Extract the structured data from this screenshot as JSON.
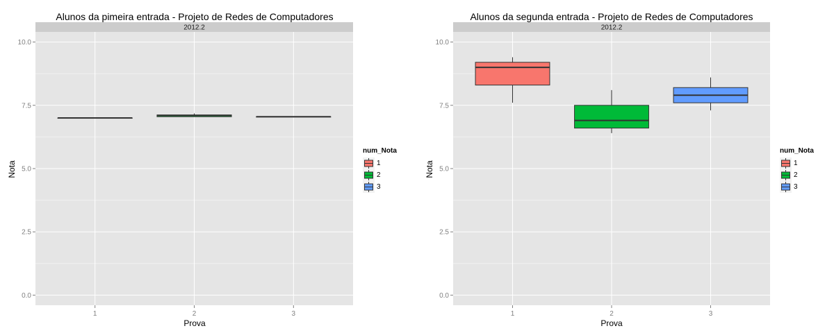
{
  "chart_data": [
    {
      "type": "boxplot",
      "title": "Alunos da pimeira entrada -  Projeto de Redes de Computadores",
      "facet_label": "2012.2",
      "xlabel": "Prova",
      "ylabel": "Nota",
      "categories": [
        "1",
        "2",
        "3"
      ],
      "ylim": [
        -0.4,
        10.4
      ],
      "yticks": [
        "0.0",
        "2.5",
        "5.0",
        "7.5",
        "10.0"
      ],
      "ytick_values": [
        0,
        2.5,
        5.0,
        7.5,
        10.0
      ],
      "boxes": [
        {
          "x": "1",
          "fill": "1",
          "min": 7.0,
          "q1": 7.0,
          "median": 7.0,
          "q3": 7.0,
          "max": 7.0
        },
        {
          "x": "2",
          "fill": "2",
          "min": 7.05,
          "q1": 7.05,
          "median": 7.1,
          "q3": 7.12,
          "max": 7.18
        },
        {
          "x": "3",
          "fill": "3",
          "min": 7.05,
          "q1": 7.05,
          "median": 7.05,
          "q3": 7.05,
          "max": 7.05
        }
      ],
      "legend": {
        "title": "num_Nota",
        "items": [
          "1",
          "2",
          "3"
        ],
        "position": "right"
      },
      "grid": true
    },
    {
      "type": "boxplot",
      "title": "Alunos da segunda entrada -  Projeto de Redes de Computadores",
      "facet_label": "2012.2",
      "xlabel": "Prova",
      "ylabel": "Nota",
      "categories": [
        "1",
        "2",
        "3"
      ],
      "ylim": [
        -0.4,
        10.4
      ],
      "yticks": [
        "0.0",
        "2.5",
        "5.0",
        "7.5",
        "10.0"
      ],
      "ytick_values": [
        0,
        2.5,
        5.0,
        7.5,
        10.0
      ],
      "boxes": [
        {
          "x": "1",
          "fill": "1",
          "min": 7.6,
          "q1": 8.3,
          "median": 9.0,
          "q3": 9.2,
          "max": 9.4
        },
        {
          "x": "2",
          "fill": "2",
          "min": 6.4,
          "q1": 6.6,
          "median": 6.9,
          "q3": 7.5,
          "max": 8.1
        },
        {
          "x": "3",
          "fill": "3",
          "min": 7.3,
          "q1": 7.6,
          "median": 7.9,
          "q3": 8.2,
          "max": 8.6
        }
      ],
      "legend": {
        "title": "num_Nota",
        "items": [
          "1",
          "2",
          "3"
        ],
        "position": "right"
      },
      "grid": true
    }
  ],
  "colors": {
    "1": "#f8766d",
    "2": "#00ba38",
    "3": "#619cff",
    "panel_bg": "#e5e5e5",
    "strip_bg": "#cccccc",
    "grid_major": "#ffffff",
    "grid_minor": "#f2f2f2",
    "tick_text": "#7f7f7f"
  }
}
